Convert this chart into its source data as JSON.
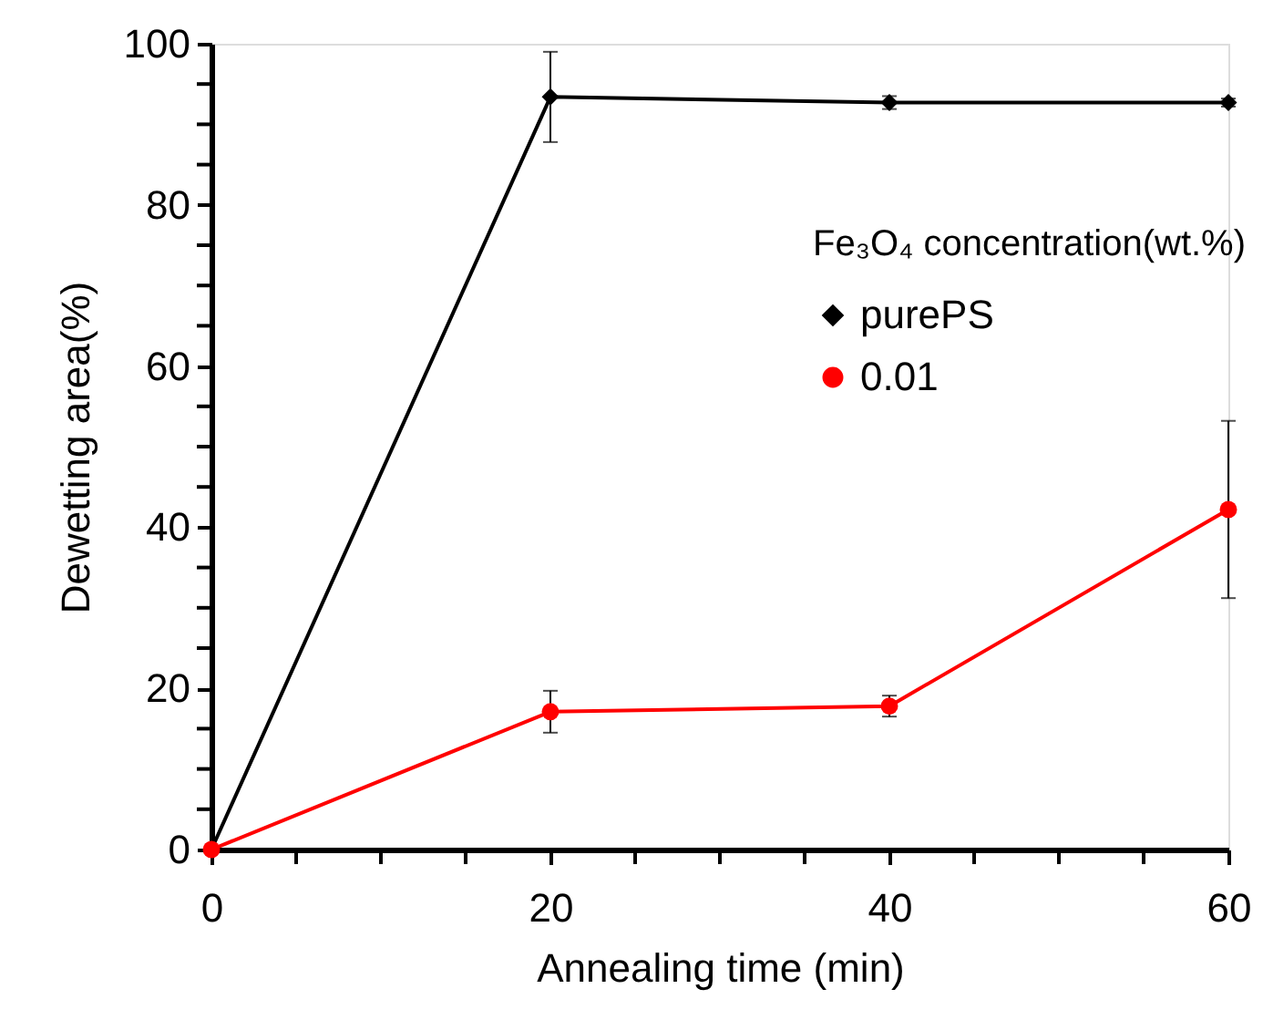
{
  "chart_data": {
    "type": "line",
    "xlabel": "Annealing time (min)",
    "ylabel": "Dewetting area(%)",
    "legend_title": "Fe₃O₄ concentration(wt.%)",
    "legend": "right",
    "grid": false,
    "x": [
      0,
      20,
      40,
      60
    ],
    "series": [
      {
        "name": "purePS",
        "color": "#000000",
        "marker": "diamond",
        "values": [
          0,
          93.4,
          92.7,
          92.7
        ],
        "errors": [
          null,
          5.6,
          0.8,
          0.5
        ]
      },
      {
        "name": "0.01",
        "color": "#ff0000",
        "marker": "circle",
        "values": [
          0,
          17.1,
          17.8,
          42.2
        ],
        "errors": [
          null,
          2.6,
          1.3,
          11
        ]
      }
    ],
    "xlim": [
      0,
      60
    ],
    "ylim": [
      0,
      100
    ],
    "xticks": [
      0,
      {
        "value": 5,
        "label": null
      },
      {
        "value": 10,
        "label": null
      },
      {
        "value": 15,
        "label": null
      },
      20,
      {
        "value": 25,
        "label": null
      },
      {
        "value": 30,
        "label": null
      },
      {
        "value": 35,
        "label": null
      },
      40,
      {
        "value": 45,
        "label": null
      },
      {
        "value": 50,
        "label": null
      },
      {
        "value": 55,
        "label": null
      },
      60
    ],
    "yticks": [
      0,
      {
        "value": 5,
        "label": null
      },
      {
        "value": 10,
        "label": null
      },
      {
        "value": 15,
        "label": null
      },
      20,
      {
        "value": 25,
        "label": null
      },
      {
        "value": 30,
        "label": null
      },
      {
        "value": 35,
        "label": null
      },
      40,
      {
        "value": 45,
        "label": null
      },
      {
        "value": 50,
        "label": null
      },
      {
        "value": 55,
        "label": null
      },
      60,
      {
        "value": 65,
        "label": null
      },
      {
        "value": 70,
        "label": null
      },
      {
        "value": 75,
        "label": null
      },
      80,
      {
        "value": 85,
        "label": null
      },
      {
        "value": 90,
        "label": null
      },
      {
        "value": 95,
        "label": null
      },
      100
    ]
  }
}
